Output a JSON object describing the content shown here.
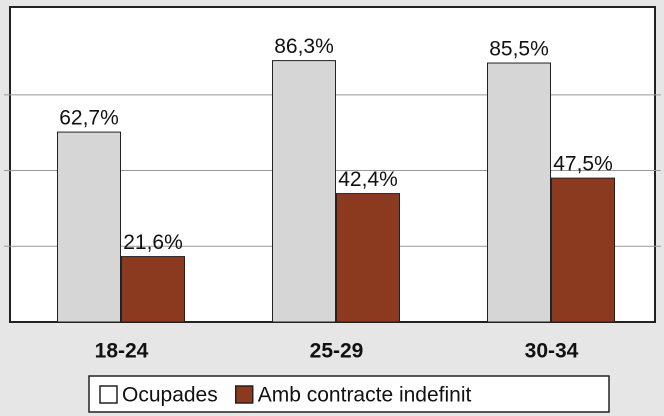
{
  "chart_data": {
    "type": "bar",
    "categories": [
      "18-24",
      "25-29",
      "30-34"
    ],
    "series": [
      {
        "name": "Ocupades",
        "color": "#d6d6d6",
        "values": [
          62.7,
          86.3,
          85.5
        ],
        "value_labels": [
          "62,7%",
          "86,3%",
          "85,5%"
        ]
      },
      {
        "name": "Amb contracte indefinit",
        "color": "#8b3a1f",
        "values": [
          21.6,
          42.4,
          47.5
        ],
        "value_labels": [
          "21,6%",
          "42,4%",
          "47,5%"
        ]
      }
    ],
    "ylim": [
      0,
      104
    ],
    "yticks": [
      25,
      50,
      75
    ],
    "grid": true,
    "legend": "bottom"
  }
}
